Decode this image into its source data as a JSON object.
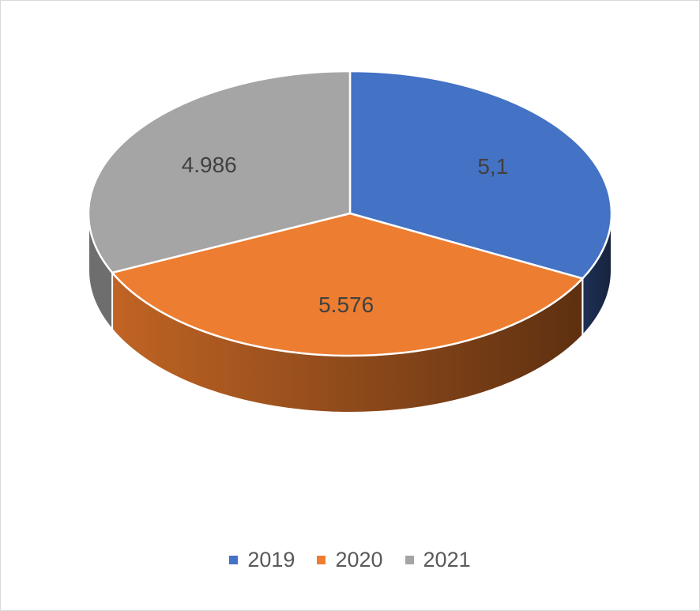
{
  "chart_data": {
    "type": "pie",
    "style": "3d",
    "title": "",
    "categories": [
      "2019",
      "2020",
      "2021"
    ],
    "labels": [
      "5,1",
      "5.576",
      "4.986"
    ],
    "values": [
      5.1,
      5.576,
      4.986
    ],
    "colors": [
      "#4472c4",
      "#ed7d31",
      "#a5a5a5"
    ],
    "side_colors": [
      "#1e2f52",
      "#7a4016",
      "#6e6e6e"
    ],
    "legend_position": "bottom"
  }
}
